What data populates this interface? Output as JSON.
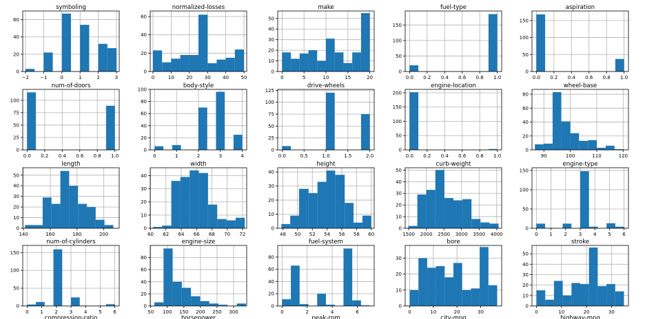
{
  "figure": {
    "bar_color": "#1f77b4",
    "grid_color": "#b0b0b0",
    "background": "#ffffff",
    "spine_color": "#000000",
    "text_color": "#000000",
    "cutoff_titles": [
      "compression-ratio",
      "horsepower",
      "peak-rpm",
      "city-mpg",
      "highway-mpg"
    ]
  },
  "chart_data": [
    {
      "type": "bar",
      "title": "symboling",
      "grid": true,
      "xlim": [
        -2.15,
        3.15
      ],
      "ylim": [
        0,
        70
      ],
      "xticks": [
        -2,
        -1,
        0,
        1,
        2,
        3
      ],
      "yticks": [
        0,
        20,
        40,
        60
      ],
      "bins": [
        [
          -2,
          -1.5,
          3
        ],
        [
          -1,
          -0.5,
          22
        ],
        [
          0,
          0.5,
          67
        ],
        [
          0.5,
          1,
          0
        ],
        [
          1,
          1.5,
          54
        ],
        [
          2,
          2.5,
          32
        ],
        [
          2.5,
          3,
          27
        ]
      ]
    },
    {
      "type": "bar",
      "title": "normalized-losses",
      "grid": true,
      "xlim": [
        -1.5,
        51.5
      ],
      "ylim": [
        0,
        66
      ],
      "xticks": [
        0,
        10,
        20,
        30,
        40,
        50
      ],
      "yticks": [
        0,
        20,
        40,
        60
      ],
      "bins": [
        [
          0,
          5,
          23
        ],
        [
          5,
          10,
          10
        ],
        [
          10,
          15,
          14
        ],
        [
          15,
          20,
          18
        ],
        [
          20,
          25,
          18
        ],
        [
          25,
          30,
          62
        ],
        [
          30,
          35,
          9
        ],
        [
          35,
          40,
          13
        ],
        [
          40,
          45,
          15
        ],
        [
          45,
          50,
          24
        ]
      ]
    },
    {
      "type": "bar",
      "title": "make",
      "grid": true,
      "xlim": [
        -1,
        21
      ],
      "ylim": [
        0,
        57
      ],
      "xticks": [
        0,
        5,
        10,
        15,
        20
      ],
      "yticks": [
        0,
        10,
        20,
        30,
        40,
        50
      ],
      "bins": [
        [
          0,
          2,
          18
        ],
        [
          2,
          4,
          12
        ],
        [
          4,
          6,
          17
        ],
        [
          6,
          8,
          20
        ],
        [
          8,
          10,
          10
        ],
        [
          10,
          12,
          31
        ],
        [
          12,
          14,
          18
        ],
        [
          14,
          16,
          8
        ],
        [
          16,
          18,
          18
        ],
        [
          18,
          20,
          55
        ]
      ]
    },
    {
      "type": "bar",
      "title": "fuel-type",
      "grid": true,
      "xlim": [
        -0.05,
        1.05
      ],
      "ylim": [
        0,
        195
      ],
      "xticks": [
        0,
        0.2,
        0.4,
        0.6,
        0.8,
        1
      ],
      "xtick_labels": [
        "0.0",
        "0.2",
        "0.4",
        "0.6",
        "0.8",
        "1.0"
      ],
      "yticks": [
        0,
        50,
        100,
        150
      ],
      "bins": [
        [
          0,
          0.1,
          20
        ],
        [
          0.9,
          1,
          185
        ]
      ]
    },
    {
      "type": "bar",
      "title": "aspiration",
      "grid": true,
      "xlim": [
        -0.05,
        1.05
      ],
      "ylim": [
        0,
        178
      ],
      "xticks": [
        0,
        0.2,
        0.4,
        0.6,
        0.8,
        1
      ],
      "xtick_labels": [
        "0.0",
        "0.2",
        "0.4",
        "0.6",
        "0.8",
        "1.0"
      ],
      "yticks": [
        0,
        50,
        100,
        150
      ],
      "bins": [
        [
          0,
          0.1,
          168
        ],
        [
          0.9,
          1,
          37
        ]
      ]
    },
    {
      "type": "bar",
      "title": "num-of-doors",
      "grid": true,
      "xlim": [
        -0.05,
        1.05
      ],
      "ylim": [
        0,
        122
      ],
      "xticks": [
        0,
        0.2,
        0.4,
        0.6,
        0.8,
        1
      ],
      "xtick_labels": [
        "0.0",
        "0.2",
        "0.4",
        "0.6",
        "0.8",
        "1.0"
      ],
      "yticks": [
        0,
        25,
        50,
        75,
        100
      ],
      "bins": [
        [
          0,
          0.1,
          116
        ],
        [
          0.9,
          1,
          89
        ]
      ]
    },
    {
      "type": "bar",
      "title": "body-style",
      "grid": true,
      "xlim": [
        -0.2,
        4.2
      ],
      "ylim": [
        0,
        100
      ],
      "xticks": [
        0,
        1,
        2,
        3,
        4
      ],
      "yticks": [
        0,
        20,
        40,
        60,
        80,
        100
      ],
      "bins": [
        [
          0,
          0.4,
          6
        ],
        [
          0.8,
          1.2,
          8
        ],
        [
          2,
          2.4,
          70
        ],
        [
          2.8,
          3.2,
          96
        ],
        [
          3.6,
          4,
          25
        ]
      ]
    },
    {
      "type": "bar",
      "title": "drive-wheels",
      "grid": true,
      "xlim": [
        -0.1,
        2.1
      ],
      "ylim": [
        0,
        127
      ],
      "xticks": [
        0,
        0.5,
        1,
        1.5,
        2
      ],
      "xtick_labels": [
        "0.0",
        "0.5",
        "1.0",
        "1.5",
        "2.0"
      ],
      "yticks": [
        0,
        25,
        50,
        75,
        100,
        125
      ],
      "bins": [
        [
          0,
          0.2,
          8
        ],
        [
          1,
          1.2,
          120
        ],
        [
          1.8,
          2,
          75
        ]
      ]
    },
    {
      "type": "bar",
      "title": "engine-location",
      "grid": true,
      "xlim": [
        -0.05,
        1.05
      ],
      "ylim": [
        0,
        212
      ],
      "xticks": [
        0,
        0.2,
        0.4,
        0.6,
        0.8,
        1
      ],
      "xtick_labels": [
        "0.0",
        "0.2",
        "0.4",
        "0.6",
        "0.8",
        "1.0"
      ],
      "yticks": [
        0,
        50,
        100,
        150,
        200
      ],
      "bins": [
        [
          0,
          0.1,
          202
        ],
        [
          0.9,
          1,
          3
        ]
      ]
    },
    {
      "type": "bar",
      "title": "wheel-base",
      "grid": true,
      "xlim": [
        85.5,
        122
      ],
      "ylim": [
        0,
        87
      ],
      "xticks": [
        90,
        100,
        110,
        120
      ],
      "yticks": [
        0,
        20,
        40,
        60,
        80
      ],
      "bins": [
        [
          86.6,
          89.9,
          8
        ],
        [
          89.9,
          93.3,
          9
        ],
        [
          93.3,
          96.6,
          83
        ],
        [
          96.6,
          100,
          41
        ],
        [
          100,
          103.3,
          24
        ],
        [
          103.3,
          106.7,
          13
        ],
        [
          106.7,
          110,
          14
        ],
        [
          110,
          113.4,
          3
        ],
        [
          113.4,
          116.7,
          6
        ],
        [
          116.7,
          120.1,
          1
        ]
      ]
    },
    {
      "type": "bar",
      "title": "length",
      "grid": true,
      "xlim": [
        139.4,
        211.5
      ],
      "ylim": [
        0,
        57
      ],
      "xticks": [
        140,
        160,
        180,
        200
      ],
      "yticks": [
        0,
        10,
        20,
        30,
        40,
        50
      ],
      "bins": [
        [
          141.1,
          147.7,
          3
        ],
        [
          147.7,
          154.3,
          3
        ],
        [
          154.3,
          160.9,
          29
        ],
        [
          160.9,
          167.5,
          23
        ],
        [
          167.5,
          174.1,
          54
        ],
        [
          174.1,
          180.7,
          40
        ],
        [
          180.7,
          187.3,
          23
        ],
        [
          187.3,
          193.9,
          20
        ],
        [
          193.9,
          200.5,
          8
        ],
        [
          200.5,
          207.1,
          3
        ]
      ]
    },
    {
      "type": "bar",
      "title": "width",
      "grid": true,
      "xlim": [
        59.95,
        72.55
      ],
      "ylim": [
        0,
        46
      ],
      "xticks": [
        60,
        62,
        64,
        66,
        68,
        70,
        72
      ],
      "yticks": [
        0,
        10,
        20,
        30,
        40
      ],
      "bins": [
        [
          60.3,
          61.5,
          1
        ],
        [
          61.5,
          62.7,
          2
        ],
        [
          62.7,
          63.9,
          36
        ],
        [
          63.9,
          65.1,
          39
        ],
        [
          65.1,
          66.3,
          44
        ],
        [
          66.3,
          67.5,
          42
        ],
        [
          67.5,
          68.7,
          18
        ],
        [
          68.7,
          69.9,
          7
        ],
        [
          69.9,
          71.1,
          6
        ],
        [
          71.1,
          72.3,
          8
        ]
      ]
    },
    {
      "type": "bar",
      "title": "height",
      "grid": true,
      "xlim": [
        47.3,
        60.4
      ],
      "ylim": [
        0,
        43
      ],
      "xticks": [
        48,
        50,
        52,
        54,
        56,
        58,
        60
      ],
      "yticks": [
        0,
        10,
        20,
        30,
        40
      ],
      "bins": [
        [
          47.8,
          49,
          3
        ],
        [
          49,
          50.2,
          9
        ],
        [
          50.2,
          51.5,
          28
        ],
        [
          51.5,
          52.7,
          25
        ],
        [
          52.7,
          53.9,
          33
        ],
        [
          53.9,
          55.1,
          41
        ],
        [
          55.1,
          56.4,
          38
        ],
        [
          56.4,
          57.6,
          18
        ],
        [
          57.6,
          58.8,
          4
        ],
        [
          58.8,
          60,
          9
        ]
      ]
    },
    {
      "type": "bar",
      "title": "curb-weight",
      "grid": true,
      "xlim": [
        1400,
        4140
      ],
      "ylim": [
        0,
        52
      ],
      "xticks": [
        1500,
        2000,
        2500,
        3000,
        3500,
        4000
      ],
      "yticks": [
        0,
        10,
        20,
        30,
        40,
        50
      ],
      "bins": [
        [
          1488,
          1745,
          2
        ],
        [
          1745,
          2001,
          29
        ],
        [
          2001,
          2257,
          33
        ],
        [
          2257,
          2514,
          50
        ],
        [
          2514,
          2770,
          26
        ],
        [
          2770,
          3026,
          24
        ],
        [
          3026,
          3283,
          25
        ],
        [
          3283,
          3539,
          8
        ],
        [
          3539,
          3796,
          5
        ],
        [
          3796,
          4052,
          4
        ]
      ]
    },
    {
      "type": "bar",
      "title": "engine-type",
      "grid": true,
      "xlim": [
        -0.3,
        6.3
      ],
      "ylim": [
        0,
        157
      ],
      "xticks": [
        0,
        1,
        2,
        3,
        4,
        5,
        6
      ],
      "yticks": [
        0,
        50,
        100,
        150
      ],
      "bins": [
        [
          0,
          0.6,
          12
        ],
        [
          0.6,
          1.2,
          1
        ],
        [
          1.8,
          2.4,
          12
        ],
        [
          3,
          3.6,
          148
        ],
        [
          3.6,
          4.2,
          4
        ],
        [
          4.8,
          5.4,
          13
        ],
        [
          5.4,
          6,
          4
        ]
      ]
    },
    {
      "type": "bar",
      "title": "num-of-cylinders",
      "grid": true,
      "xlim": [
        -0.3,
        6.3
      ],
      "ylim": [
        0,
        170
      ],
      "xticks": [
        0,
        1,
        2,
        3,
        4,
        5,
        6
      ],
      "yticks": [
        0,
        50,
        100,
        150
      ],
      "bins": [
        [
          0,
          0.6,
          4
        ],
        [
          0.6,
          1.2,
          11
        ],
        [
          1.8,
          2.4,
          159
        ],
        [
          3,
          3.6,
          24
        ],
        [
          3.6,
          4.2,
          1
        ],
        [
          4.8,
          5.4,
          1
        ],
        [
          5.4,
          6,
          5
        ]
      ]
    },
    {
      "type": "bar",
      "title": "engine-size",
      "grid": true,
      "xlim": [
        48.5,
        339.5
      ],
      "ylim": [
        0,
        100
      ],
      "xticks": [
        50,
        100,
        150,
        200,
        250,
        300
      ],
      "yticks": [
        0,
        20,
        40,
        60,
        80
      ],
      "bins": [
        [
          61,
          88.6,
          6
        ],
        [
          88.6,
          116.2,
          95
        ],
        [
          116.2,
          143.8,
          40
        ],
        [
          143.8,
          171.4,
          30
        ],
        [
          171.4,
          199,
          16
        ],
        [
          199,
          226.6,
          8
        ],
        [
          226.6,
          254.2,
          4
        ],
        [
          254.2,
          281.8,
          2
        ],
        [
          281.8,
          309.4,
          0
        ],
        [
          309.4,
          337,
          4
        ]
      ]
    },
    {
      "type": "bar",
      "title": "fuel-system",
      "grid": true,
      "xlim": [
        -0.35,
        7.35
      ],
      "ylim": [
        0,
        99
      ],
      "xticks": [
        0,
        2,
        4,
        6
      ],
      "yticks": [
        0,
        20,
        40,
        60,
        80
      ],
      "bins": [
        [
          0,
          0.7,
          11
        ],
        [
          0.7,
          1.4,
          66
        ],
        [
          1.4,
          2.1,
          3
        ],
        [
          2.8,
          3.5,
          20
        ],
        [
          3.5,
          4.2,
          2
        ],
        [
          4.9,
          5.6,
          94
        ],
        [
          5.6,
          6.3,
          9
        ],
        [
          6.3,
          7,
          1
        ]
      ]
    },
    {
      "type": "bar",
      "title": "bore",
      "grid": true,
      "xlim": [
        -1.9,
        38.9
      ],
      "ylim": [
        0,
        38
      ],
      "xticks": [
        0,
        10,
        20,
        30
      ],
      "yticks": [
        0,
        10,
        20,
        30
      ],
      "bins": [
        [
          0,
          3.7,
          10
        ],
        [
          3.7,
          7.4,
          30
        ],
        [
          7.4,
          11.1,
          24
        ],
        [
          11.1,
          14.8,
          25
        ],
        [
          14.8,
          18.5,
          18
        ],
        [
          18.5,
          22.2,
          27
        ],
        [
          22.2,
          25.9,
          10
        ],
        [
          25.9,
          29.6,
          11
        ],
        [
          29.6,
          33.3,
          37
        ],
        [
          33.3,
          37,
          13
        ]
      ]
    },
    {
      "type": "bar",
      "title": "stroke",
      "grid": true,
      "xlim": [
        -1.8,
        36.8
      ],
      "ylim": [
        0,
        58
      ],
      "xticks": [
        0,
        10,
        20,
        30
      ],
      "yticks": [
        0,
        10,
        20,
        30,
        40,
        50
      ],
      "bins": [
        [
          0,
          3.5,
          15
        ],
        [
          3.5,
          7,
          6
        ],
        [
          7,
          10.5,
          24
        ],
        [
          10.5,
          14,
          10
        ],
        [
          14,
          17.5,
          22
        ],
        [
          17.5,
          21,
          21
        ],
        [
          21,
          24.5,
          56
        ],
        [
          24.5,
          28,
          19
        ],
        [
          28,
          31.5,
          21
        ],
        [
          31.5,
          35,
          14
        ]
      ]
    }
  ]
}
